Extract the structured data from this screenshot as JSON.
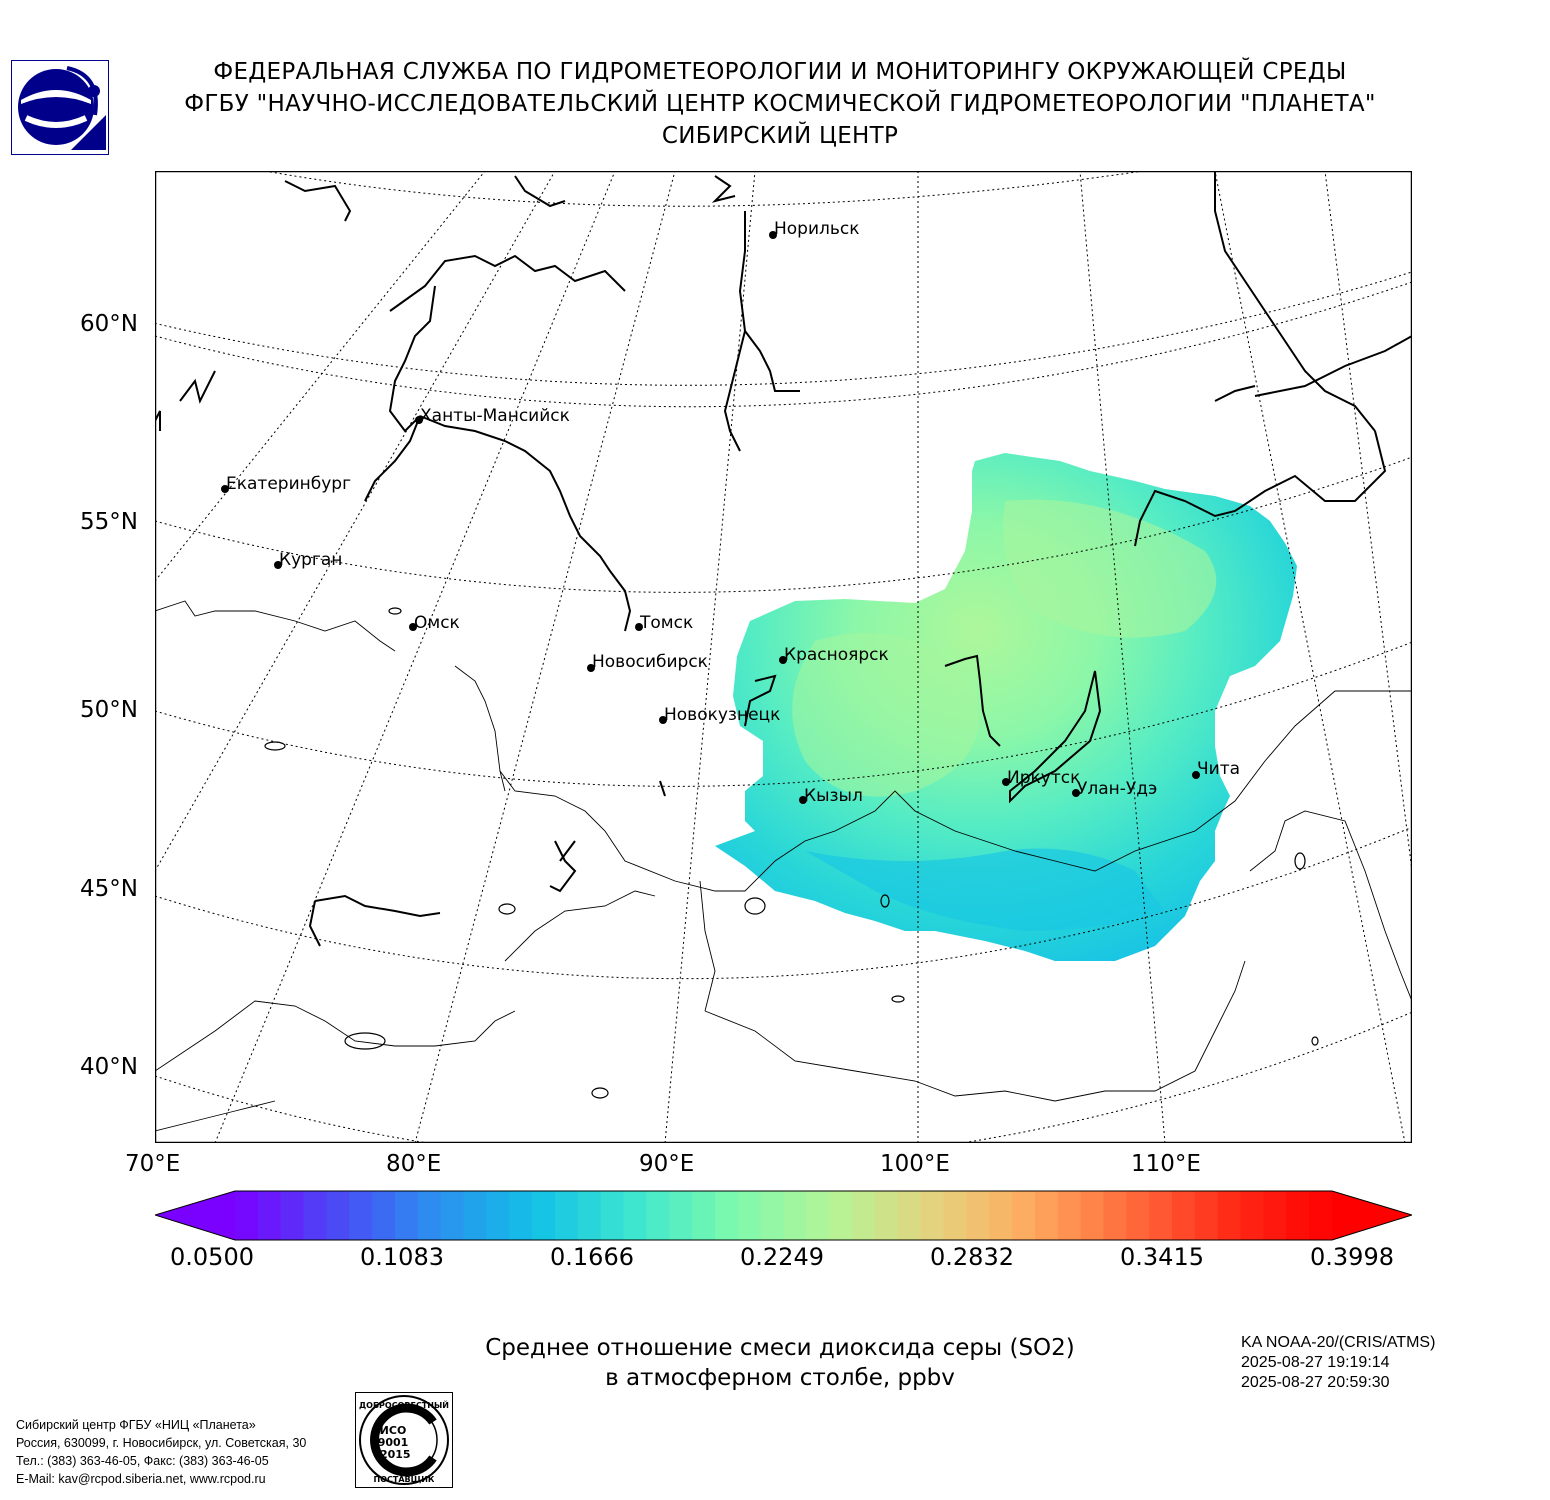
{
  "header": {
    "line1": "ФЕДЕРАЛЬНАЯ СЛУЖБА ПО ГИДРОМЕТЕОРОЛОГИИ И МОНИТОРИНГУ ОКРУЖАЮЩЕЙ СРЕДЫ",
    "line2": "ФГБУ \"НАУЧНО-ИССЛЕДОВАТЕЛЬСКИЙ ЦЕНТР КОСМИЧЕСКОЙ ГИДРОМЕТЕОРОЛОГИИ \"ПЛАНЕТА\"",
    "line3": "СИБИРСКИЙ ЦЕНТР"
  },
  "logo": {
    "icon": "planeta-logo-icon",
    "color": "#00008b"
  },
  "map": {
    "lat_labels": [
      "60°N",
      "55°N",
      "50°N",
      "45°N",
      "40°N"
    ],
    "lon_labels": [
      "70°E",
      "80°E",
      "90°E",
      "100°E",
      "110°E"
    ],
    "cities": [
      {
        "name": "Норильск"
      },
      {
        "name": "Ханты-Мансийск"
      },
      {
        "name": "Екатеринбург"
      },
      {
        "name": "Курган"
      },
      {
        "name": "Омск"
      },
      {
        "name": "Томск"
      },
      {
        "name": "Новосибирск"
      },
      {
        "name": "Красноярск"
      },
      {
        "name": "Новокузнецк"
      },
      {
        "name": "Кызыл"
      },
      {
        "name": "Иркутск"
      },
      {
        "name": "Улан-Удэ"
      },
      {
        "name": "Чита"
      }
    ]
  },
  "colorbar": {
    "ticks": [
      "0.0500",
      "0.1083",
      "0.1666",
      "0.2249",
      "0.2832",
      "0.3415",
      "0.3998"
    ],
    "min": 0.05,
    "max": 0.3998,
    "colors": [
      "#7a00ff",
      "#4b49f5",
      "#2c8ff0",
      "#12c0e6",
      "#3de6cf",
      "#7ef9ad",
      "#b4f497",
      "#e5d37e",
      "#ffa95f",
      "#ff6a3c",
      "#ff2a17",
      "#ff0000"
    ]
  },
  "product": {
    "title_line1": "Среднее отношение смеси диоксида серы (SO2)",
    "title_line2": "в атмосферном столбе, ppbv"
  },
  "satellite": {
    "name": "KA NOAA-20/(CRIS/ATMS)",
    "start": "2025-08-27 19:19:14",
    "end": "2025-08-27 20:59:30"
  },
  "footer": {
    "line1": "Сибирский центр ФГБУ «НИЦ «Планета»",
    "line2": "Россия, 630099, г. Новосибирск, ул. Советская, 30",
    "line3": "Тел.: (383) 363-46-05, Факс: (383) 363-46-05",
    "line4": "E-Mail: kav@rcpod.siberia.net, www.rcpod.ru"
  },
  "iso_badge": {
    "top": "ДОБРОСОВЕСТНЫЙ",
    "mid1": "ИСО",
    "mid2": "9001",
    "mid3": "-2015",
    "bottom": "ПОСТАВЩИК"
  }
}
